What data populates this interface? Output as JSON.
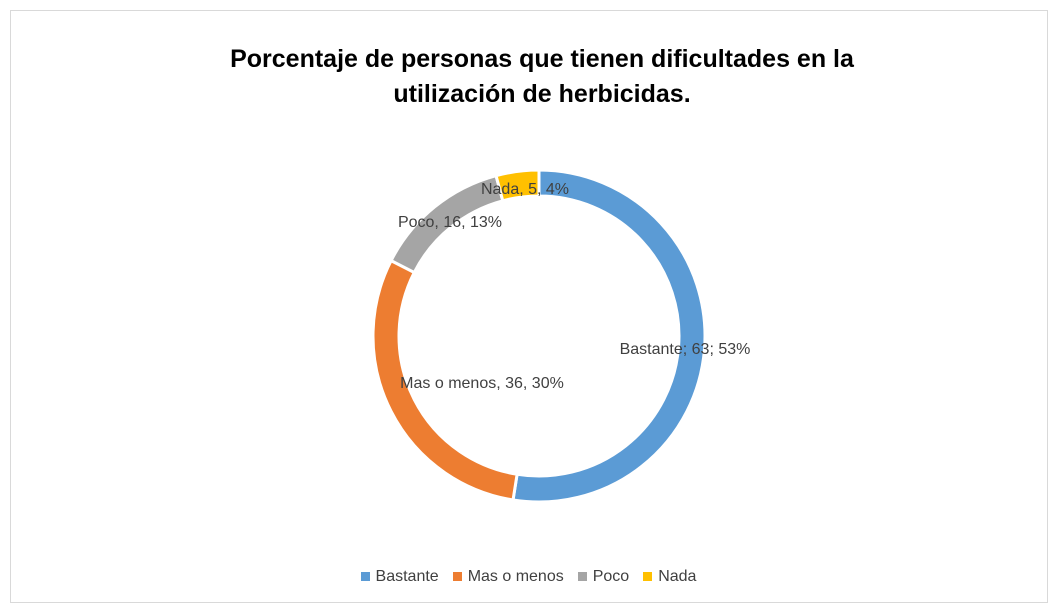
{
  "chart_data": {
    "type": "donut",
    "title": "Porcentaje de personas que tienen dificultades en la utilización de herbicidas.",
    "categories": [
      "Bastante",
      "Mas o menos",
      "Poco",
      "Nada"
    ],
    "values": [
      63,
      36,
      16,
      5
    ],
    "value_labels": [
      "Bastante; 63; 53%",
      "Mas o menos, 36, 30%",
      "Poco, 16, 13%",
      "Nada, 5, 4%"
    ],
    "colors": [
      "#5b9bd5",
      "#ed7d31",
      "#a5a5a5",
      "#ffc000"
    ],
    "legend": "bottom"
  }
}
